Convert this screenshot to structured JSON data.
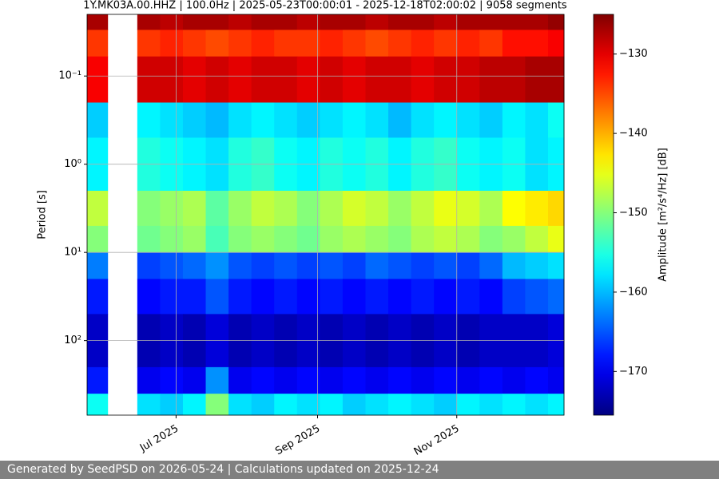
{
  "chart_data": {
    "type": "heatmap",
    "title": "1Y.MK03A.00.HHZ | 100.0Hz | 2025-05-23T00:00:01 - 2025-12-18T02:00:02 | 9058 segments",
    "y_label": "Period [s]",
    "colorbar_label": "Amplitude [m²/s⁴/Hz] [dB]",
    "colormap": "jet",
    "y_log": true,
    "y_inverted": true,
    "grid": true,
    "xlim": [
      "2025-05-23",
      "2025-12-18"
    ],
    "xticks": [
      {
        "value": "2025-07",
        "label": "Jul 2025"
      },
      {
        "value": "2025-09",
        "label": "Sep 2025"
      },
      {
        "value": "2025-11",
        "label": "Nov 2025"
      }
    ],
    "ylim": [
      0.02,
      700
    ],
    "yticks": [
      {
        "value": 0.1,
        "label": "10⁻¹"
      },
      {
        "value": 1,
        "label": "10⁰"
      },
      {
        "value": 10,
        "label": "10¹"
      },
      {
        "value": 100,
        "label": "10²"
      }
    ],
    "clim": [
      -175.5,
      -125
    ],
    "cticks": [
      {
        "value": -130,
        "label": "−130"
      },
      {
        "value": -140,
        "label": "−140"
      },
      {
        "value": -150,
        "label": "−150"
      },
      {
        "value": -160,
        "label": "−160"
      },
      {
        "value": -170,
        "label": "−170"
      }
    ],
    "x_bins": [
      "2025-05-23",
      "2025-06-01",
      "2025-06-14",
      "2025-06-24",
      "2025-07-04",
      "2025-07-14",
      "2025-07-24",
      "2025-08-03",
      "2025-08-13",
      "2025-08-23",
      "2025-09-02",
      "2025-09-12",
      "2025-09-22",
      "2025-10-02",
      "2025-10-12",
      "2025-10-22",
      "2025-11-01",
      "2025-11-11",
      "2025-11-21",
      "2025-12-01",
      "2025-12-11",
      "2025-12-18"
    ],
    "y_bins": [
      0.02,
      0.03,
      0.06,
      0.2,
      0.5,
      2,
      5,
      10,
      20,
      50,
      200,
      400,
      700
    ],
    "z": [
      [
        -127,
        null,
        -127,
        -128,
        -127,
        -127,
        -128,
        -127,
        -127,
        -128,
        -127,
        -127,
        -128,
        -127,
        -127,
        -128,
        -127,
        -127,
        -127,
        -127,
        -126
      ],
      [
        -134,
        null,
        -134,
        -133,
        -134,
        -135,
        -134,
        -133,
        -134,
        -134,
        -133,
        -134,
        -135,
        -134,
        -133,
        -134,
        -133,
        -134,
        -132,
        -132,
        -131
      ],
      [
        -131,
        null,
        -129,
        -129,
        -130,
        -129,
        -130,
        -129,
        -129,
        -130,
        -129,
        -130,
        -129,
        -129,
        -130,
        -129,
        -129,
        -128,
        -128,
        -127,
        -127
      ],
      [
        -159,
        null,
        -157,
        -158,
        -159,
        -160,
        -158,
        -157,
        -158,
        -159,
        -158,
        -157,
        -158,
        -160,
        -158,
        -157,
        -158,
        -159,
        -157,
        -158,
        -156
      ],
      [
        -157,
        null,
        -155,
        -156,
        -157,
        -158,
        -155,
        -154,
        -156,
        -157,
        -155,
        -156,
        -155,
        -157,
        -155,
        -154,
        -156,
        -157,
        -156,
        -158,
        -157
      ],
      [
        -147,
        null,
        -150,
        -149,
        -148,
        -152,
        -149,
        -147,
        -148,
        -150,
        -148,
        -146,
        -147,
        -149,
        -147,
        -145,
        -146,
        -148,
        -144,
        -143,
        -142
      ],
      [
        -150,
        null,
        -151,
        -150,
        -149,
        -153,
        -150,
        -149,
        -150,
        -151,
        -149,
        -148,
        -149,
        -150,
        -148,
        -147,
        -148,
        -150,
        -149,
        -147,
        -145
      ],
      [
        -163,
        null,
        -166,
        -165,
        -164,
        -162,
        -165,
        -166,
        -165,
        -166,
        -165,
        -166,
        -164,
        -165,
        -166,
        -165,
        -166,
        -164,
        -160,
        -159,
        -158
      ],
      [
        -168,
        null,
        -169,
        -168,
        -168,
        -165,
        -168,
        -169,
        -168,
        -169,
        -168,
        -169,
        -168,
        -169,
        -168,
        -169,
        -168,
        -169,
        -166,
        -165,
        -164
      ],
      [
        -172,
        null,
        -173,
        -172,
        -173,
        -171,
        -173,
        -172,
        -173,
        -172,
        -173,
        -172,
        -173,
        -172,
        -173,
        -172,
        -173,
        -172,
        -172,
        -172,
        -171
      ],
      [
        -168,
        null,
        -170,
        -169,
        -170,
        -162,
        -170,
        -169,
        -170,
        -169,
        -170,
        -169,
        -170,
        -169,
        -170,
        -169,
        -170,
        -169,
        -170,
        -169,
        -170
      ],
      [
        -156,
        null,
        -158,
        -159,
        -157,
        -150,
        -158,
        -159,
        -157,
        -158,
        -157,
        -159,
        -158,
        -157,
        -158,
        -159,
        -157,
        -158,
        -157,
        -158,
        -157
      ]
    ]
  },
  "footer": "Generated by SeedPSD on 2026-05-24 | Calculations updated on 2025-12-24"
}
